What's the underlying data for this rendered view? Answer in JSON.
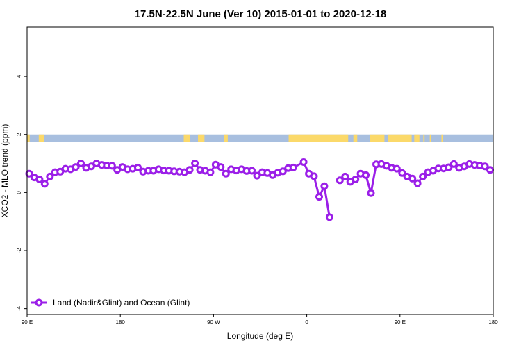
{
  "chart_data": {
    "type": "line",
    "title": "17.5N-22.5N June (Ver 10)   2015-01-01 to 2020-12-18",
    "xlabel": "Longitude (deg E)",
    "ylabel": "XCO2 - MLO trend (ppm)",
    "xlim": [
      -270,
      -90
    ],
    "ylim": [
      -4.2,
      5.7
    ],
    "x_ticks": [
      {
        "value": -270,
        "label": "90 E"
      },
      {
        "value": -234,
        "label": "180"
      },
      {
        "value": -198,
        "label": "90 W"
      },
      {
        "value": -162,
        "label": "0"
      },
      {
        "value": -126,
        "label": "90 E"
      },
      {
        "value": -90,
        "label": "180"
      }
    ],
    "y_ticks": [
      {
        "value": -4,
        "label": "-4"
      },
      {
        "value": -2,
        "label": "-2"
      },
      {
        "value": 0,
        "label": "0"
      },
      {
        "value": 2,
        "label": "2"
      },
      {
        "value": 4,
        "label": "4"
      }
    ],
    "grid": false,
    "legend_position": "bottom-left",
    "land_ocean_strip": {
      "y_range": [
        1.75,
        2.0
      ],
      "ocean_color": "#a8bfdf",
      "land_color": "#fbd96a",
      "land_x_ranges": [
        [
          -270,
          -269
        ],
        [
          -265.5,
          -263.5
        ],
        [
          -209.5,
          -207
        ],
        [
          -204,
          -201.5
        ],
        [
          -194,
          -192.5
        ],
        [
          -169,
          -146
        ],
        [
          -144,
          -142.5
        ],
        [
          -137.5,
          -132
        ],
        [
          -130.5,
          -121.5
        ],
        [
          -120.5,
          -118.5
        ],
        [
          -117,
          -116.5
        ],
        [
          -114.5,
          -114
        ],
        [
          -110,
          -109.5
        ]
      ]
    },
    "series": [
      {
        "name": "Land (Nadir&Glint) and Ocean (Glint)",
        "color": "#9b1fe8",
        "segments": [
          [
            [
              -269.2,
              0.65
            ],
            [
              -267.2,
              0.52
            ],
            [
              -265.2,
              0.45
            ],
            [
              -263.2,
              0.3
            ],
            [
              -261.2,
              0.55
            ],
            [
              -259.2,
              0.7
            ],
            [
              -257.2,
              0.72
            ],
            [
              -255.2,
              0.82
            ],
            [
              -253.2,
              0.8
            ],
            [
              -251.2,
              0.88
            ],
            [
              -249.2,
              1.0
            ],
            [
              -247.2,
              0.85
            ],
            [
              -245.2,
              0.9
            ],
            [
              -243.2,
              1.0
            ],
            [
              -241.2,
              0.95
            ],
            [
              -239.2,
              0.93
            ],
            [
              -237.2,
              0.92
            ],
            [
              -235.2,
              0.78
            ],
            [
              -233.2,
              0.88
            ],
            [
              -231.2,
              0.8
            ],
            [
              -229.2,
              0.82
            ],
            [
              -227.2,
              0.86
            ],
            [
              -225.2,
              0.72
            ],
            [
              -223.2,
              0.75
            ],
            [
              -221.2,
              0.75
            ],
            [
              -219.2,
              0.8
            ],
            [
              -217.2,
              0.76
            ],
            [
              -215.2,
              0.75
            ],
            [
              -213.2,
              0.73
            ],
            [
              -211.2,
              0.72
            ],
            [
              -209.2,
              0.7
            ],
            [
              -207.2,
              0.78
            ],
            [
              -205.2,
              1.0
            ],
            [
              -203.2,
              0.78
            ],
            [
              -201.2,
              0.75
            ],
            [
              -199.2,
              0.7
            ],
            [
              -197.2,
              0.96
            ],
            [
              -195.2,
              0.88
            ],
            [
              -193.2,
              0.65
            ],
            [
              -191.2,
              0.8
            ],
            [
              -189.2,
              0.76
            ],
            [
              -187.2,
              0.8
            ],
            [
              -185.2,
              0.74
            ],
            [
              -183.2,
              0.75
            ],
            [
              -181.2,
              0.58
            ],
            [
              -179.2,
              0.7
            ],
            [
              -177.2,
              0.67
            ],
            [
              -175.2,
              0.6
            ],
            [
              -173.2,
              0.68
            ],
            [
              -171.2,
              0.73
            ],
            [
              -169.2,
              0.84
            ],
            [
              -167.2,
              0.86
            ],
            [
              -163.2,
              1.05
            ],
            [
              -161.2,
              0.65
            ],
            [
              -159.2,
              0.56
            ],
            [
              -157.2,
              -0.15
            ],
            [
              -155.2,
              0.22
            ],
            [
              -153.2,
              -0.85
            ]
          ],
          [
            [
              -149.2,
              0.42
            ],
            [
              -147.2,
              0.55
            ],
            [
              -145.2,
              0.37
            ],
            [
              -143.2,
              0.45
            ],
            [
              -141.2,
              0.65
            ],
            [
              -139.2,
              0.6
            ],
            [
              -137.2,
              -0.02
            ],
            [
              -135.2,
              0.97
            ],
            [
              -133.2,
              0.98
            ],
            [
              -131.2,
              0.92
            ],
            [
              -129.2,
              0.85
            ],
            [
              -127.2,
              0.82
            ],
            [
              -125.2,
              0.67
            ],
            [
              -123.2,
              0.55
            ],
            [
              -121.2,
              0.48
            ],
            [
              -119.2,
              0.32
            ],
            [
              -117.2,
              0.55
            ],
            [
              -115.2,
              0.7
            ],
            [
              -113.2,
              0.75
            ],
            [
              -111.2,
              0.83
            ],
            [
              -109.2,
              0.83
            ],
            [
              -107.2,
              0.87
            ],
            [
              -105.2,
              0.98
            ],
            [
              -103.2,
              0.85
            ],
            [
              -101.2,
              0.9
            ],
            [
              -99.2,
              0.98
            ],
            [
              -97.2,
              0.95
            ],
            [
              -95.2,
              0.93
            ],
            [
              -93.2,
              0.9
            ],
            [
              -91.2,
              0.78
            ]
          ]
        ]
      }
    ]
  }
}
